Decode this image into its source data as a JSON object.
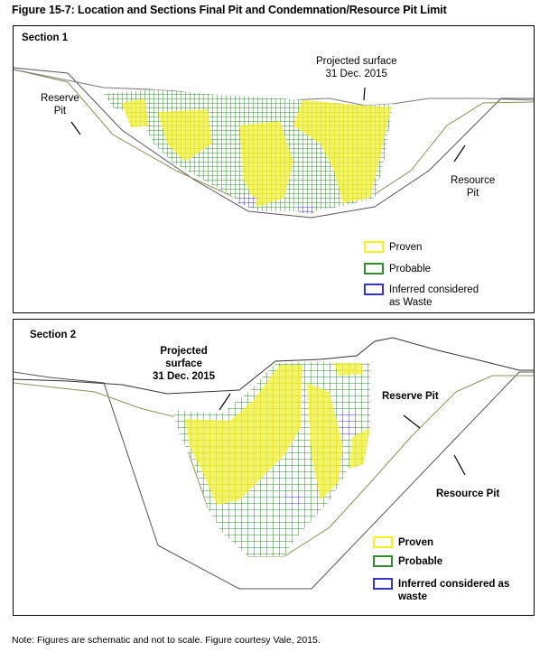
{
  "figure": {
    "title": "Figure 15-7: Location and Sections Final Pit and Condemnation/Resource Pit Limit",
    "note": "Note:  Figures are schematic and not to scale.  Figure courtesy Vale, 2015."
  },
  "colors": {
    "proven": "#f2f21a",
    "probable": "#2e8b2e",
    "inferred": "#3535c8",
    "pit_line_reserve": "#8f8f58",
    "pit_line_resource": "#555555"
  },
  "section1": {
    "title": "Section 1",
    "reserve_pit": "Reserve\nPit",
    "projected_surface": "Projected surface\n31 Dec. 2015",
    "resource_pit": "Resource\nPit",
    "legend": [
      {
        "key": "proven",
        "label": "Proven"
      },
      {
        "key": "probable",
        "label": "Probable"
      },
      {
        "key": "inferred",
        "label": "Inferred considered\nas Waste"
      }
    ]
  },
  "section2": {
    "title": "Section 2",
    "projected_surface": "Projected\nsurface\n31 Dec. 2015",
    "reserve_pit": "Reserve Pit",
    "resource_pit": "Resource Pit",
    "legend": [
      {
        "key": "proven",
        "label": "Proven"
      },
      {
        "key": "probable",
        "label": "Probable"
      },
      {
        "key": "inferred",
        "label": "Inferred considered as\nwaste"
      }
    ]
  }
}
